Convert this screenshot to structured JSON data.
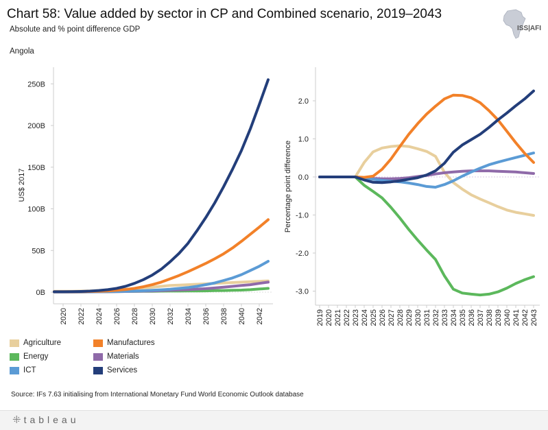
{
  "header": {
    "title": "Chart 58: Value added by sector in CP and Combined scenario, 2019–2043",
    "subtitle": "Absolute and % point difference GDP",
    "region": "Angola",
    "logo_text": "ISS|AFI"
  },
  "colors": {
    "Agriculture": "#e8cf9d",
    "Manufactures": "#f28129",
    "Energy": "#5cb85c",
    "Materials": "#8f6aa9",
    "ICT": "#5b9bd5",
    "Services": "#233e7a"
  },
  "legend": [
    {
      "label": "Agriculture",
      "color": "#e8cf9d"
    },
    {
      "label": "Manufactures",
      "color": "#f28129"
    },
    {
      "label": "Energy",
      "color": "#5cb85c"
    },
    {
      "label": "Materials",
      "color": "#8f6aa9"
    },
    {
      "label": "ICT",
      "color": "#5b9bd5"
    },
    {
      "label": "Services",
      "color": "#233e7a"
    }
  ],
  "source": "Source: IFs 7.63 initialising from International Monetary Fund World Economic Outlook database",
  "footer": {
    "brand": "tableau"
  },
  "chart_data": [
    {
      "type": "line",
      "title": "",
      "xlabel": "",
      "ylabel": "US$ 2017",
      "ylim": [
        0,
        260
      ],
      "yticks": [
        0,
        50,
        100,
        150,
        200,
        250
      ],
      "ytick_labels": [
        "0B",
        "50B",
        "100B",
        "150B",
        "200B",
        "250B"
      ],
      "xticks": [
        "2020",
        "2022",
        "2024",
        "2026",
        "2028",
        "2030",
        "2032",
        "2034",
        "2036",
        "2038",
        "2040",
        "2042"
      ],
      "x": [
        2019,
        2020,
        2021,
        2022,
        2023,
        2024,
        2025,
        2026,
        2027,
        2028,
        2029,
        2030,
        2031,
        2032,
        2033,
        2034,
        2035,
        2036,
        2037,
        2038,
        2039,
        2040,
        2041,
        2042,
        2043
      ],
      "series": [
        {
          "name": "Agriculture",
          "values": [
            1,
            1,
            1,
            1.2,
            1.5,
            2,
            2.5,
            3,
            3.5,
            4,
            5,
            6,
            7,
            8,
            8.5,
            9,
            9.5,
            10,
            10.5,
            11,
            11.5,
            12,
            12.5,
            13,
            13.5
          ]
        },
        {
          "name": "Energy",
          "values": [
            0.3,
            0.3,
            0.3,
            0.3,
            0.4,
            0.5,
            0.6,
            0.7,
            0.8,
            0.9,
            1,
            1.1,
            1.2,
            1.3,
            1.3,
            1.4,
            1.5,
            1.6,
            1.8,
            2,
            2.2,
            2.5,
            3,
            3.8,
            4.5
          ]
        },
        {
          "name": "Materials",
          "values": [
            0.2,
            0.2,
            0.2,
            0.2,
            0.3,
            0.4,
            0.5,
            0.6,
            0.8,
            1,
            1.2,
            1.5,
            1.8,
            2.2,
            2.6,
            3,
            3.6,
            4.2,
            5,
            6,
            7,
            8,
            9,
            10.5,
            12
          ]
        },
        {
          "name": "ICT",
          "values": [
            0.3,
            0.3,
            0.3,
            0.3,
            0.4,
            0.5,
            0.6,
            0.8,
            1,
            1.3,
            1.7,
            2.2,
            2.8,
            3.5,
            4.5,
            5.5,
            7,
            9,
            11,
            14,
            17,
            21,
            26,
            31,
            37
          ]
        },
        {
          "name": "Manufactures",
          "values": [
            0.5,
            0.5,
            0.5,
            0.6,
            0.8,
            1,
            1.5,
            2.2,
            3.2,
            4.5,
            6.5,
            9,
            12,
            16,
            20,
            24.5,
            29.5,
            34.5,
            40,
            46,
            53,
            61,
            69.5,
            78,
            87
          ]
        },
        {
          "name": "Services",
          "values": [
            0.5,
            0.5,
            0.6,
            0.8,
            1.2,
            2,
            3,
            4.5,
            7,
            10.5,
            15,
            20.5,
            27.5,
            36.5,
            46.5,
            58.5,
            73.5,
            89.5,
            107,
            126.5,
            147.5,
            170,
            196,
            225,
            255
          ]
        }
      ]
    },
    {
      "type": "line",
      "title": "",
      "xlabel": "",
      "ylabel": "Percentage point difference",
      "ylim": [
        -3.3,
        2.55
      ],
      "yticks": [
        2.0,
        1.0,
        0.0,
        -1.0,
        -2.0,
        -3.0
      ],
      "ytick_labels": [
        "2.0",
        "1.0",
        "0.0",
        "-1.0",
        "-2.0",
        "-3.0"
      ],
      "xticks": [
        "2019",
        "2020",
        "2021",
        "2022",
        "2023",
        "2024",
        "2025",
        "2026",
        "2027",
        "2028",
        "2029",
        "2030",
        "2031",
        "2032",
        "2033",
        "2034",
        "2035",
        "2036",
        "2037",
        "2038",
        "2039",
        "2040",
        "2041",
        "2042",
        "2043"
      ],
      "x": [
        2019,
        2020,
        2021,
        2022,
        2023,
        2024,
        2025,
        2026,
        2027,
        2028,
        2029,
        2030,
        2031,
        2032,
        2033,
        2034,
        2035,
        2036,
        2037,
        2038,
        2039,
        2040,
        2041,
        2042,
        2043
      ],
      "series": [
        {
          "name": "Agriculture",
          "values": [
            0,
            0,
            0,
            0,
            0,
            0.38,
            0.66,
            0.76,
            0.8,
            0.82,
            0.8,
            0.74,
            0.67,
            0.54,
            0.12,
            -0.15,
            -0.32,
            -0.47,
            -0.58,
            -0.68,
            -0.78,
            -0.87,
            -0.93,
            -0.97,
            -1.01
          ]
        },
        {
          "name": "Energy",
          "values": [
            0,
            0,
            0,
            0,
            0,
            -0.22,
            -0.38,
            -0.55,
            -0.8,
            -1.08,
            -1.38,
            -1.66,
            -1.92,
            -2.17,
            -2.6,
            -2.95,
            -3.05,
            -3.08,
            -3.1,
            -3.08,
            -3.02,
            -2.92,
            -2.8,
            -2.7,
            -2.62
          ]
        },
        {
          "name": "Materials",
          "values": [
            0,
            0,
            0,
            0,
            0,
            -0.02,
            -0.04,
            -0.05,
            -0.05,
            -0.04,
            -0.02,
            0.01,
            0.04,
            0.08,
            0.11,
            0.13,
            0.15,
            0.16,
            0.16,
            0.16,
            0.15,
            0.14,
            0.13,
            0.11,
            0.09
          ]
        },
        {
          "name": "ICT",
          "values": [
            0,
            0,
            0,
            0,
            0,
            -0.03,
            -0.06,
            -0.09,
            -0.11,
            -0.13,
            -0.16,
            -0.2,
            -0.25,
            -0.27,
            -0.2,
            -0.1,
            0.02,
            0.13,
            0.23,
            0.32,
            0.39,
            0.45,
            0.51,
            0.57,
            0.63
          ]
        },
        {
          "name": "Manufactures",
          "values": [
            0,
            0,
            0,
            0,
            0,
            -0.01,
            0.02,
            0.2,
            0.47,
            0.8,
            1.12,
            1.4,
            1.65,
            1.86,
            2.05,
            2.15,
            2.14,
            2.08,
            1.95,
            1.74,
            1.5,
            1.2,
            0.9,
            0.62,
            0.38
          ]
        },
        {
          "name": "Services",
          "values": [
            0,
            0,
            0,
            0,
            0,
            -0.08,
            -0.14,
            -0.15,
            -0.13,
            -0.1,
            -0.06,
            -0.02,
            0.05,
            0.16,
            0.36,
            0.65,
            0.84,
            0.98,
            1.12,
            1.3,
            1.5,
            1.68,
            1.87,
            2.05,
            2.26
          ]
        }
      ]
    }
  ]
}
